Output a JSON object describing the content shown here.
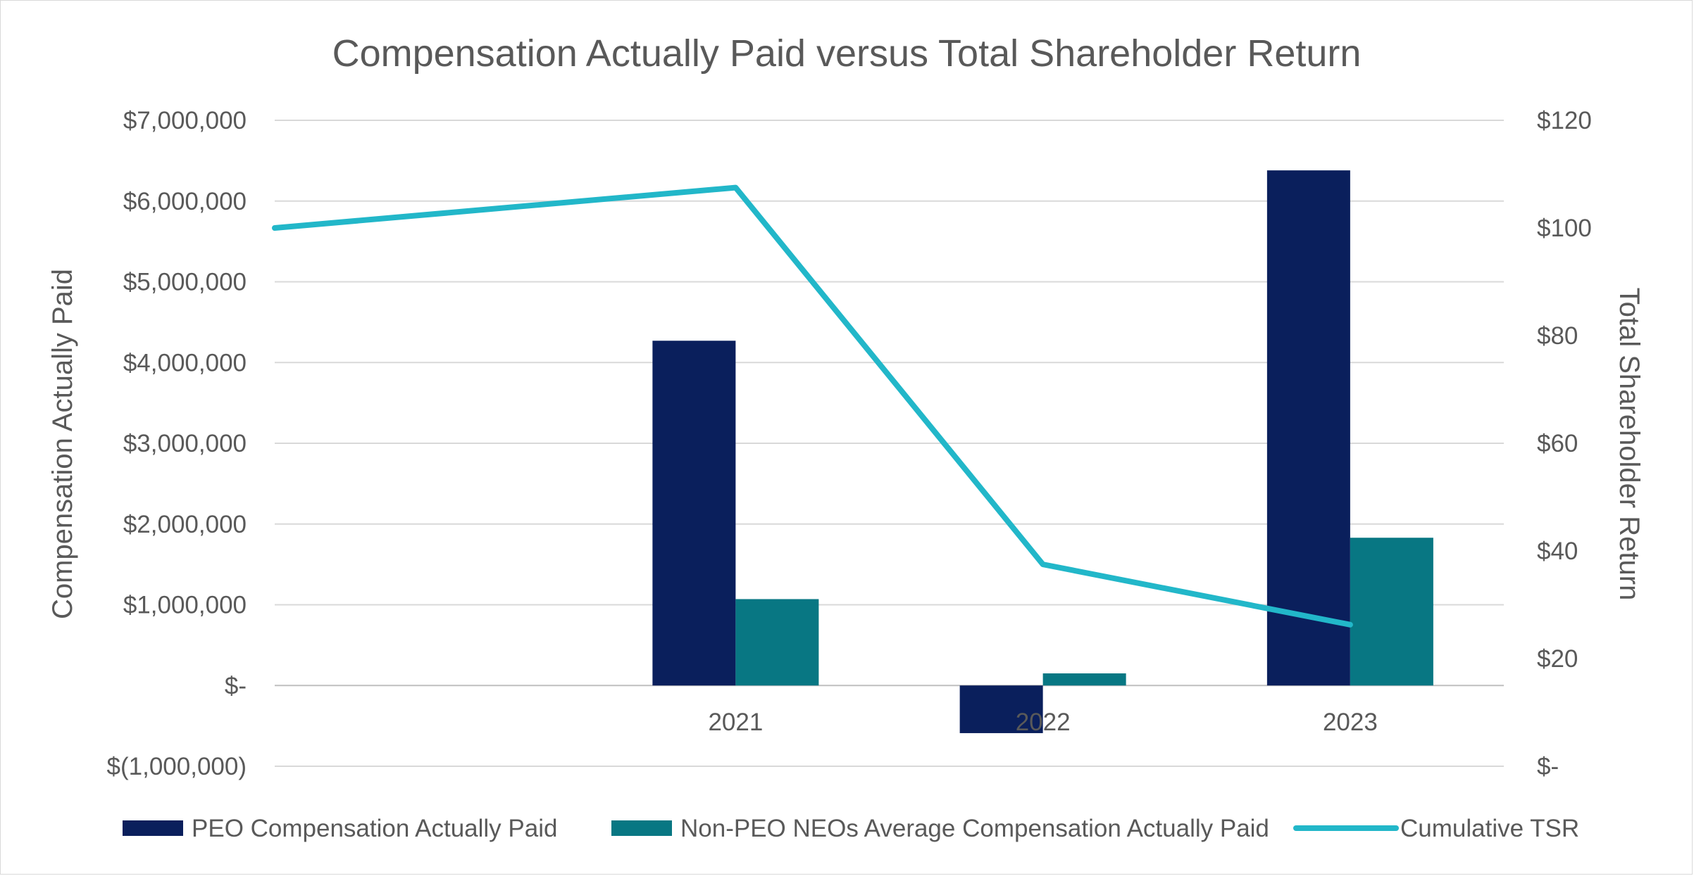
{
  "chart_data": {
    "type": "bar",
    "title": "Compensation Actually Paid versus Total Shareholder Return",
    "categories": [
      "",
      "2021",
      "2022",
      "2023"
    ],
    "category_tick_labels": [
      "2021",
      "2022",
      "2023"
    ],
    "ylabel": "Compensation Actually Paid",
    "y2label": "Total Shareholder Return",
    "ylim": [
      -1000000,
      7000000
    ],
    "y2lim": [
      0,
      120
    ],
    "y_ticks": [
      {
        "value": 7000000,
        "label": "$7,000,000"
      },
      {
        "value": 6000000,
        "label": "$6,000,000"
      },
      {
        "value": 5000000,
        "label": "$5,000,000"
      },
      {
        "value": 4000000,
        "label": "$4,000,000"
      },
      {
        "value": 3000000,
        "label": "$3,000,000"
      },
      {
        "value": 2000000,
        "label": "$2,000,000"
      },
      {
        "value": 1000000,
        "label": "$1,000,000"
      },
      {
        "value": 0,
        "label": "$-"
      },
      {
        "value": -1000000,
        "label": "$(1,000,000)"
      }
    ],
    "y2_ticks": [
      {
        "value": 120,
        "label": "$120"
      },
      {
        "value": 100,
        "label": "$100"
      },
      {
        "value": 80,
        "label": "$80"
      },
      {
        "value": 60,
        "label": "$60"
      },
      {
        "value": 40,
        "label": "$40"
      },
      {
        "value": 20,
        "label": "$20"
      },
      {
        "value": 0,
        "label": "$-"
      }
    ],
    "grid": true,
    "legend_position": "bottom",
    "series": [
      {
        "name": "PEO Compensation Actually Paid",
        "type": "bar",
        "axis": "left",
        "color": "#0a1f5c",
        "values": [
          null,
          4270000,
          -590000,
          6380000
        ]
      },
      {
        "name": "Non-PEO NEOs Average Compensation Actually Paid",
        "type": "bar",
        "axis": "left",
        "color": "#087783",
        "values": [
          null,
          1070000,
          150000,
          1830000
        ]
      },
      {
        "name": "Cumulative TSR",
        "type": "line",
        "axis": "right",
        "color": "#22b7c9",
        "values": [
          100,
          107.5,
          37.5,
          26.3
        ]
      }
    ]
  }
}
